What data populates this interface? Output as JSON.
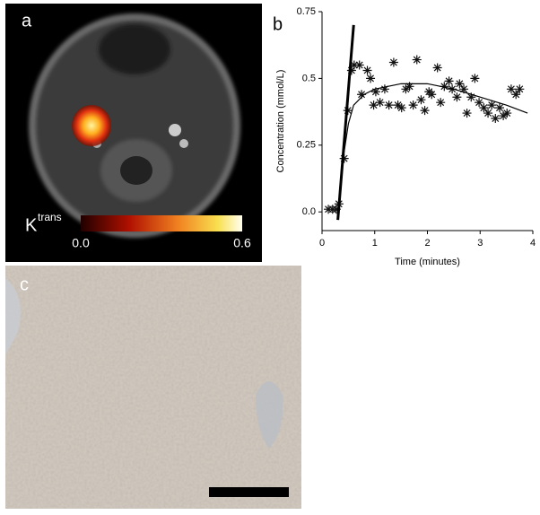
{
  "panels": {
    "a": {
      "label": "a",
      "colorbar": {
        "label": "K",
        "superscript": "trans",
        "lim": [
          0,
          0.6
        ],
        "ticks": [
          {
            "value": 0,
            "label": "0.0"
          },
          0.6
        ]
      }
    },
    "b": {
      "label": "b"
    },
    "c": {
      "label": "c"
    }
  },
  "chart_data": {
    "type": "scatter",
    "xlabel": "Time (minutes)",
    "ylabel": "Concentration (mmol/L)",
    "xlim": [
      0,
      4
    ],
    "xticks": [
      0,
      1,
      2,
      3,
      4
    ],
    "ylim": [
      -0.07,
      0.75
    ],
    "yticks": [
      {
        "value": 0,
        "label": "0.0"
      },
      0.25,
      0.5,
      0.75
    ],
    "series": [
      {
        "type": "scatter",
        "marker": "asterisk",
        "color": "#111111",
        "x": [
          0.12,
          0.2,
          0.27,
          0.32,
          0.42,
          0.49,
          0.56,
          0.61,
          0.71,
          0.75,
          0.86,
          0.92,
          0.98,
          1.02,
          1.1,
          1.19,
          1.27,
          1.36,
          1.44,
          1.51,
          1.59,
          1.66,
          1.73,
          1.8,
          1.88,
          1.95,
          2.03,
          2.08,
          2.19,
          2.25,
          2.32,
          2.41,
          2.47,
          2.56,
          2.61,
          2.69,
          2.75,
          2.83,
          2.9,
          2.98,
          3.07,
          3.15,
          3.22,
          3.29,
          3.37,
          3.44,
          3.51,
          3.59,
          3.68,
          3.75
        ],
        "values": [
          0.01,
          0.01,
          0.01,
          0.03,
          0.2,
          0.38,
          0.53,
          0.55,
          0.55,
          0.44,
          0.53,
          0.5,
          0.4,
          0.45,
          0.41,
          0.46,
          0.4,
          0.56,
          0.4,
          0.39,
          0.46,
          0.47,
          0.4,
          0.57,
          0.42,
          0.38,
          0.45,
          0.44,
          0.54,
          0.41,
          0.47,
          0.49,
          0.46,
          0.43,
          0.48,
          0.46,
          0.37,
          0.43,
          0.5,
          0.41,
          0.39,
          0.37,
          0.4,
          0.35,
          0.39,
          0.36,
          0.37,
          0.46,
          0.44,
          0.46
        ]
      },
      {
        "type": "line",
        "color": "#000000",
        "width": 3,
        "x": [
          0.3,
          0.6
        ],
        "values": [
          -0.03,
          0.7
        ]
      },
      {
        "type": "line",
        "color": "#000000",
        "width": 1.2,
        "x": [
          0.3,
          0.4,
          0.5,
          0.6,
          0.8,
          1.0,
          1.5,
          2.0,
          2.5,
          3.0,
          3.5,
          3.9
        ],
        "values": [
          0.0,
          0.2,
          0.33,
          0.4,
          0.44,
          0.46,
          0.48,
          0.48,
          0.46,
          0.43,
          0.4,
          0.37
        ]
      }
    ]
  }
}
